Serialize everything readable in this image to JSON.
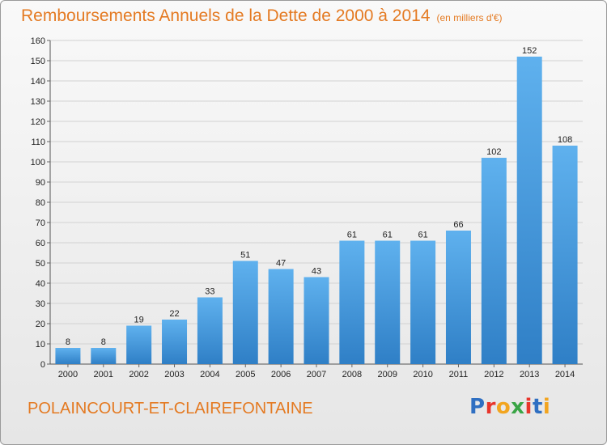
{
  "chart_data": {
    "type": "bar",
    "title": "Remboursements Annuels de la Dette de 2000 à 2014",
    "subtitle": "(en milliers d'€)",
    "xlabel": "",
    "ylabel": "",
    "categories": [
      "2000",
      "2001",
      "2002",
      "2003",
      "2004",
      "2005",
      "2006",
      "2007",
      "2008",
      "2009",
      "2010",
      "2011",
      "2012",
      "2013",
      "2014"
    ],
    "values": [
      8,
      8,
      19,
      22,
      33,
      51,
      47,
      43,
      61,
      61,
      61,
      66,
      102,
      152,
      108
    ],
    "ylim": [
      0,
      160
    ],
    "yticks": [
      0,
      10,
      20,
      30,
      40,
      50,
      60,
      70,
      80,
      90,
      100,
      110,
      120,
      130,
      140,
      150,
      160
    ],
    "grid": true,
    "bar_color": "#4a9fe0"
  },
  "footer": {
    "commune": "POLAINCOURT-ET-CLAIREFONTAINE",
    "brand": "Proxiti",
    "brand_colors": [
      "#2f6fc2",
      "#e8352b",
      "#f2a520",
      "#3aa546",
      "#e8352b",
      "#2f6fc2",
      "#f2a520"
    ]
  }
}
